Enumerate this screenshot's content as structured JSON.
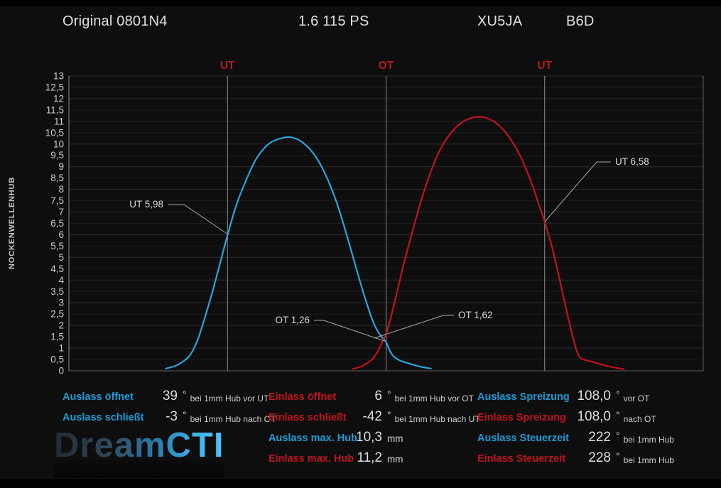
{
  "header": {
    "profile": "Original 0801N4",
    "engine": "1.6 115 PS",
    "engine_code": "XU5JA",
    "type_code": "B6D"
  },
  "chart_data": {
    "type": "line",
    "ylabel": "NOCKENWELLENHUB",
    "ylim": [
      0,
      13
    ],
    "y_tick_step": 0.5,
    "x_range_deg": [
      0,
      720
    ],
    "grid": true,
    "x_markers": [
      {
        "label": "UT",
        "deg": 180
      },
      {
        "label": "OT",
        "deg": 360
      },
      {
        "label": "UT",
        "deg": 540
      }
    ],
    "series": [
      {
        "name": "Auslass",
        "color": "#2ba3dc",
        "points": [
          [
            110,
            0.1
          ],
          [
            121,
            0.22
          ],
          [
            131,
            0.45
          ],
          [
            138,
            0.72
          ],
          [
            146,
            1.35
          ],
          [
            154,
            2.3
          ],
          [
            163,
            3.5
          ],
          [
            172,
            4.8
          ],
          [
            180,
            5.98
          ],
          [
            190,
            7.3
          ],
          [
            200,
            8.3
          ],
          [
            212,
            9.3
          ],
          [
            225,
            9.95
          ],
          [
            238,
            10.22
          ],
          [
            252,
            10.3
          ],
          [
            266,
            10.05
          ],
          [
            280,
            9.45
          ],
          [
            293,
            8.5
          ],
          [
            305,
            7.3
          ],
          [
            316,
            5.9
          ],
          [
            327,
            4.4
          ],
          [
            337,
            3.1
          ],
          [
            346,
            2.1
          ],
          [
            353,
            1.6
          ],
          [
            360,
            1.26
          ],
          [
            364,
            0.9
          ],
          [
            369,
            0.62
          ],
          [
            376,
            0.45
          ],
          [
            388,
            0.3
          ],
          [
            400,
            0.17
          ],
          [
            411,
            0.1
          ]
        ]
      },
      {
        "name": "Einlass",
        "color": "#c11220",
        "points": [
          [
            322,
            0.08
          ],
          [
            331,
            0.18
          ],
          [
            339,
            0.35
          ],
          [
            346,
            0.58
          ],
          [
            352,
            0.95
          ],
          [
            356,
            1.3
          ],
          [
            360,
            1.62
          ],
          [
            365,
            2.3
          ],
          [
            372,
            3.4
          ],
          [
            380,
            4.7
          ],
          [
            389,
            6.0
          ],
          [
            399,
            7.4
          ],
          [
            410,
            8.7
          ],
          [
            422,
            9.8
          ],
          [
            436,
            10.6
          ],
          [
            450,
            11.05
          ],
          [
            468,
            11.2
          ],
          [
            484,
            10.95
          ],
          [
            498,
            10.4
          ],
          [
            512,
            9.5
          ],
          [
            524,
            8.4
          ],
          [
            532,
            7.5
          ],
          [
            540,
            6.58
          ],
          [
            548,
            5.5
          ],
          [
            556,
            4.2
          ],
          [
            564,
            2.8
          ],
          [
            570,
            1.8
          ],
          [
            575,
            1.05
          ],
          [
            579,
            0.65
          ],
          [
            584,
            0.5
          ],
          [
            596,
            0.38
          ],
          [
            612,
            0.2
          ],
          [
            630,
            0.07
          ]
        ]
      }
    ],
    "annotations": [
      {
        "text": "UT 5,98"
      },
      {
        "text": "OT 1,26"
      },
      {
        "text": "OT 1,62"
      },
      {
        "text": "UT 6,58"
      }
    ],
    "max_lift": {
      "auslass_mm": 10.3,
      "einlass_mm": 11.2
    }
  },
  "table": {
    "rows": [
      {
        "cells": [
          {
            "col": 0,
            "type": "auslass",
            "label": "Auslass öffnet",
            "value": "39",
            "unit": "°",
            "suffix": "bei 1mm Hub vor UT"
          },
          {
            "col": 1,
            "type": "einlass",
            "label": "Einlass öffnet",
            "value": "6",
            "unit": "°",
            "suffix": "bei 1mm Hub vor OT"
          },
          {
            "col": 2,
            "type": "auslass",
            "label": "Auslass Spreizung",
            "value": "108,0",
            "unit": "°",
            "suffix": "vor OT"
          }
        ]
      },
      {
        "cells": [
          {
            "col": 0,
            "type": "auslass",
            "label": "Auslass schließt",
            "value": "-3",
            "unit": "°",
            "suffix": "bei 1mm Hub nach OT"
          },
          {
            "col": 1,
            "type": "einlass",
            "label": "Einlass schließt",
            "value": "-42",
            "unit": "°",
            "suffix": "bei 1mm Hub nach UT"
          },
          {
            "col": 2,
            "type": "einlass",
            "label": "Einlass Spreizung",
            "value": "108,0",
            "unit": "°",
            "suffix": "nach OT"
          }
        ]
      },
      {
        "cells": [
          {
            "col": 1,
            "type": "auslass",
            "label": "Auslass max. Hub",
            "value": "10,3",
            "unit": "mm",
            "suffix": ""
          },
          {
            "col": 2,
            "type": "auslass",
            "label": "Auslass Steuerzeit",
            "value": "222",
            "unit": "°",
            "suffix": "bei 1mm Hub"
          }
        ]
      },
      {
        "cells": [
          {
            "col": 1,
            "type": "einlass",
            "label": "Einlass max. Hub",
            "value": "11,2",
            "unit": "mm",
            "suffix": ""
          },
          {
            "col": 2,
            "type": "einlass",
            "label": "Einlass Steuerzeit",
            "value": "228",
            "unit": "°",
            "suffix": "bei 1mm Hub"
          }
        ]
      }
    ]
  },
  "logo": {
    "text": "DreamCTI"
  },
  "colors": {
    "background": "#0e0e0e",
    "auslass": "#1e9cd6",
    "einlass": "#c0141f",
    "marker_label": "#b41e24",
    "grid_minor": "#1c1c1c",
    "grid_major": "#2c2c2c",
    "marker_line": "#8f8f8f",
    "annotation": "#d8d8d8"
  }
}
